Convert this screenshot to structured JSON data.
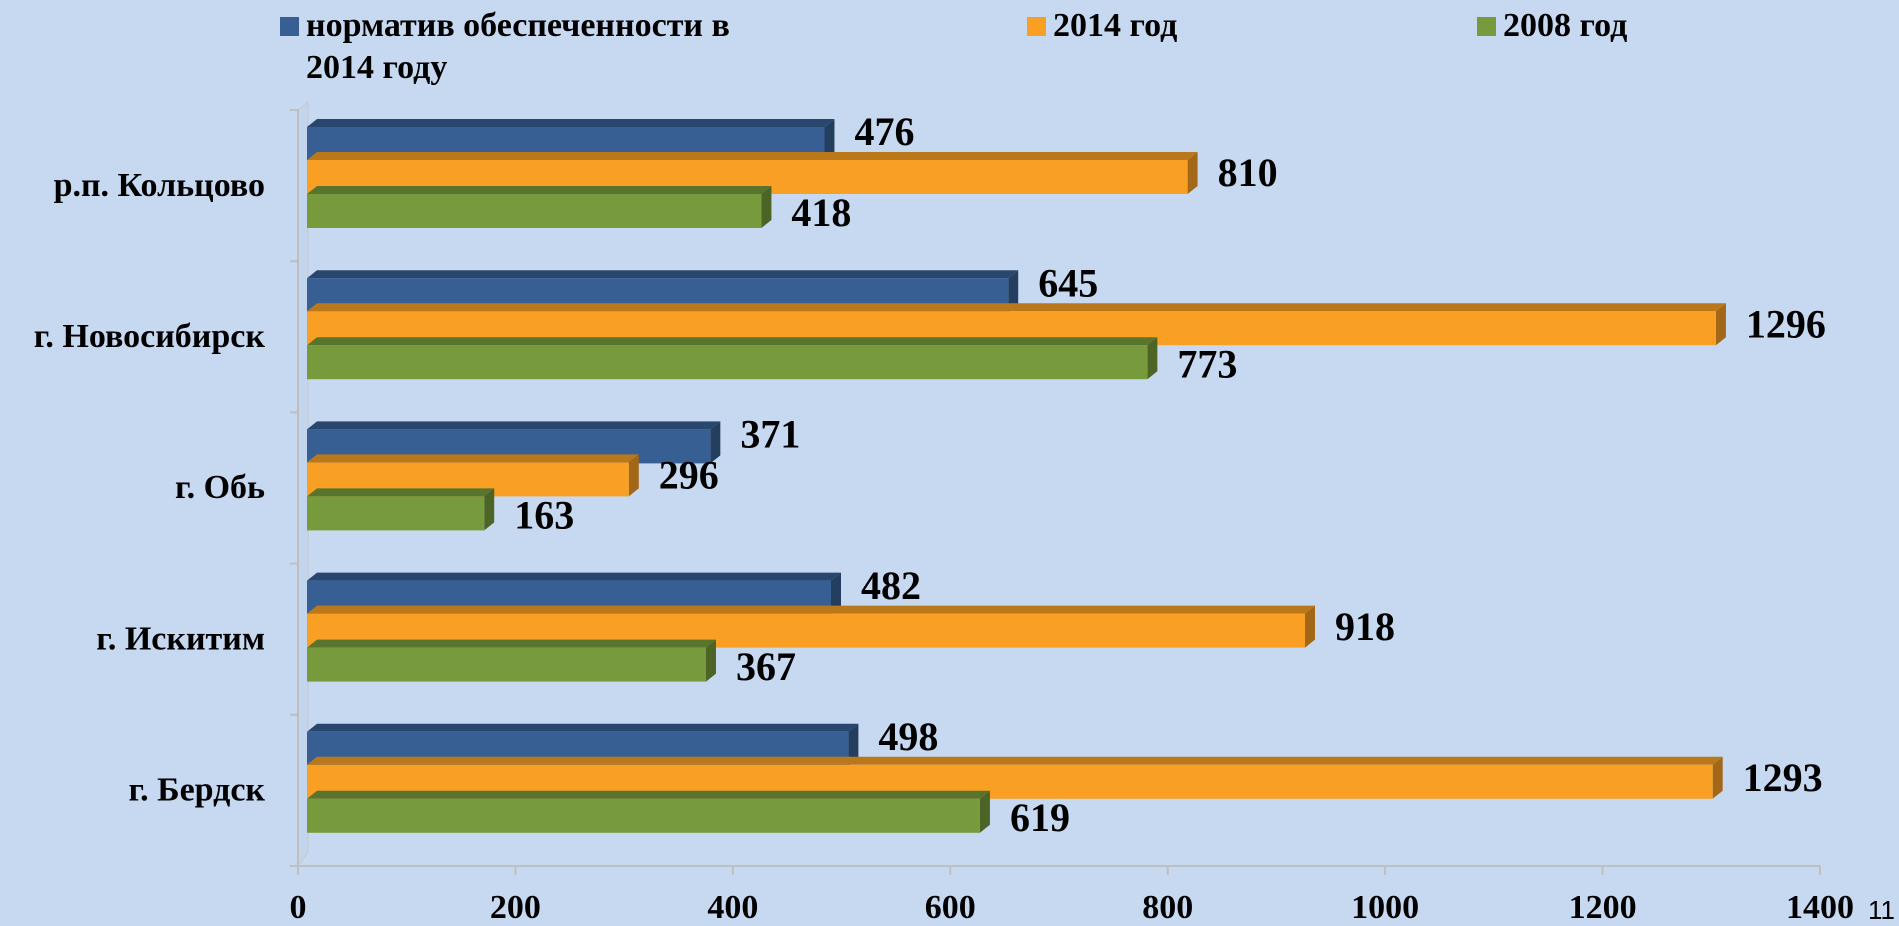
{
  "chart_data": {
    "type": "bar3d_horizontal",
    "categories": [
      "р.п. Кольцово",
      "г. Новосибирск",
      "г. Обь",
      "г. Искитим",
      "г. Бердск"
    ],
    "series": [
      {
        "name": "норматив обеспеченности в 2014 году",
        "color": "#375f93",
        "values": [
          476,
          645,
          371,
          482,
          498
        ]
      },
      {
        "name": "2014 год",
        "color": "#f9a024",
        "values": [
          810,
          1296,
          296,
          918,
          1293
        ]
      },
      {
        "name": "2008 год",
        "color": "#779a3c",
        "values": [
          418,
          773,
          163,
          367,
          619
        ]
      }
    ],
    "xlim": [
      0,
      1400
    ],
    "xticks": [
      0,
      200,
      400,
      600,
      800,
      1000,
      1200,
      1400
    ],
    "legend": "top"
  },
  "page_number": "11"
}
